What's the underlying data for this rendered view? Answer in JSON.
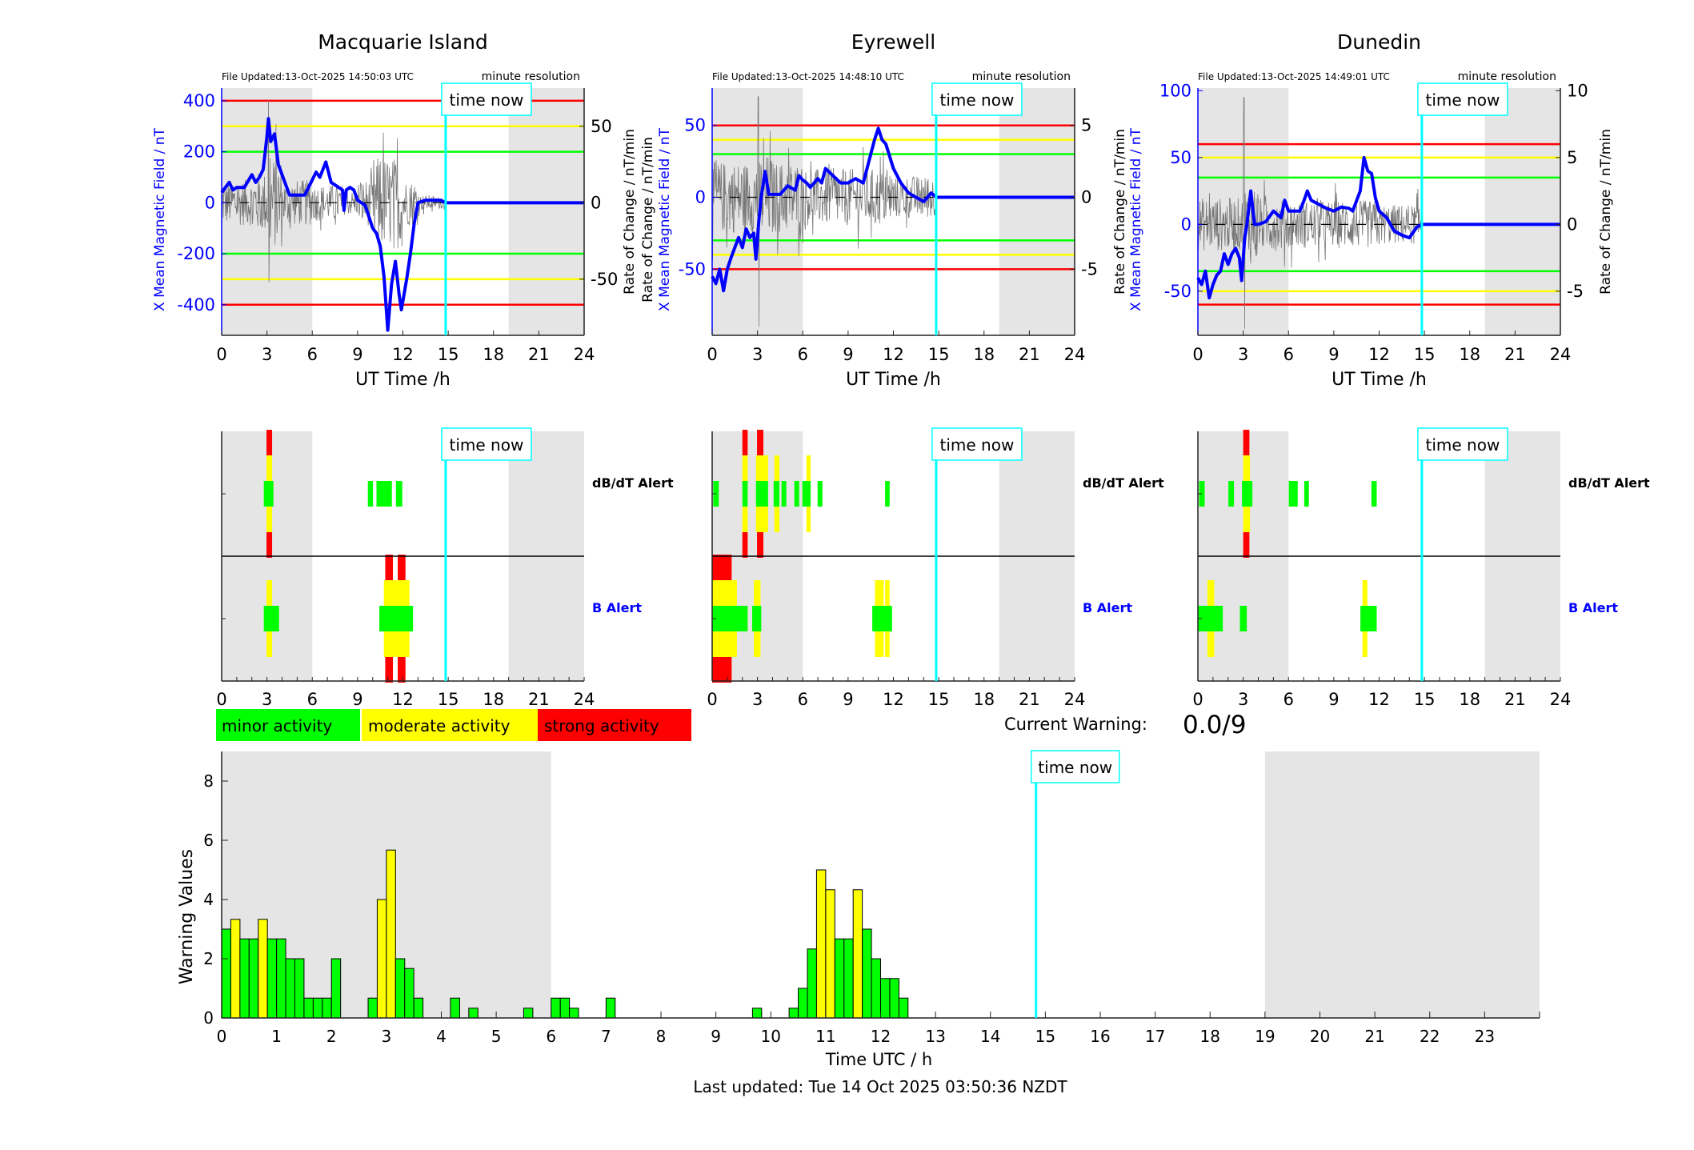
{
  "time_now_label": "time now",
  "time_now_hour": 14.83,
  "night_shading_hours": [
    [
      0,
      6
    ],
    [
      19,
      24
    ]
  ],
  "colors": {
    "field": "#0000ff",
    "rate": "#808080",
    "red": "#ff0000",
    "yellow": "#ffff00",
    "green": "#00ff00",
    "time_now": "#00ffff",
    "night": "#e5e5e5"
  },
  "stations": [
    {
      "title": "Macquarie Island",
      "file_updated": "File Updated:13-Oct-2025 14:50:03 UTC",
      "resolution_label": "minute resolution",
      "left_labels": [
        {
          "text": "X Mean Magnetic Field / nT",
          "color": "#0000ff"
        }
      ],
      "right_label": "Rate of Change / nT/min",
      "xlabel": "UT Time /h",
      "xticks": [
        0,
        3,
        6,
        9,
        12,
        15,
        18,
        21,
        24
      ],
      "field_ylim": [
        -520,
        450
      ],
      "field_ticks": [
        400,
        200,
        0,
        -200,
        -400
      ],
      "rate_ylim": [
        -86.7,
        75
      ],
      "rate_ticks": [
        50,
        0,
        -50
      ],
      "thresholds": {
        "red": 400,
        "yellow": 300,
        "green": 200
      },
      "field_x": [
        [
          0,
          40
        ],
        [
          0.25,
          60
        ],
        [
          0.5,
          80
        ],
        [
          0.75,
          50
        ],
        [
          1,
          60
        ],
        [
          1.5,
          60
        ],
        [
          2,
          110
        ],
        [
          2.25,
          80
        ],
        [
          2.5,
          100
        ],
        [
          2.75,
          130
        ],
        [
          3,
          260
        ],
        [
          3.1,
          330
        ],
        [
          3.25,
          240
        ],
        [
          3.5,
          270
        ],
        [
          3.75,
          150
        ],
        [
          4,
          110
        ],
        [
          4.25,
          70
        ],
        [
          4.5,
          30
        ],
        [
          5,
          30
        ],
        [
          5.5,
          30
        ],
        [
          6,
          90
        ],
        [
          6.25,
          120
        ],
        [
          6.5,
          100
        ],
        [
          6.9,
          160
        ],
        [
          7.25,
          80
        ],
        [
          7.5,
          70
        ],
        [
          8,
          50
        ],
        [
          8.1,
          -30
        ],
        [
          8.25,
          50
        ],
        [
          8.5,
          60
        ],
        [
          8.75,
          50
        ],
        [
          9,
          10
        ],
        [
          9.5,
          -10
        ],
        [
          10,
          -100
        ],
        [
          10.25,
          -120
        ],
        [
          10.5,
          -170
        ],
        [
          10.75,
          -290
        ],
        [
          11,
          -500
        ],
        [
          11.25,
          -320
        ],
        [
          11.5,
          -230
        ],
        [
          11.75,
          -360
        ],
        [
          11.9,
          -420
        ],
        [
          12.25,
          -300
        ],
        [
          12.5,
          -200
        ],
        [
          12.75,
          -80
        ],
        [
          13,
          0
        ],
        [
          13.5,
          10
        ],
        [
          14,
          10
        ],
        [
          14.5,
          10
        ],
        [
          14.83,
          0
        ],
        [
          24,
          0
        ]
      ],
      "rate_envelope_hourly": [
        15,
        15,
        20,
        30,
        15,
        15,
        12,
        12,
        8,
        15,
        30,
        30,
        15,
        5,
        4
      ],
      "rate_spikes": [
        {
          "t": 3.1,
          "min": -52,
          "max": 67
        }
      ],
      "dbdt_alert_label": "dB/dT Alert",
      "b_alert_label": "B Alert",
      "dbdt_alerts": {
        "green": [
          [
            2.79,
            3.43
          ],
          [
            9.68,
            10.02
          ],
          [
            10.25,
            11.27
          ],
          [
            11.54,
            11.96
          ]
        ],
        "yellow": [
          [
            2.97,
            3.34
          ]
        ],
        "red": [
          [
            2.97,
            3.34
          ]
        ]
      },
      "b_alerts": {
        "green": [
          [
            2.79,
            3.8
          ],
          [
            10.44,
            12.67
          ]
        ],
        "yellow": [
          [
            2.97,
            3.34
          ],
          [
            10.74,
            12.44
          ]
        ],
        "red": [
          [
            10.83,
            11.34
          ],
          [
            11.66,
            12.17
          ]
        ]
      }
    },
    {
      "title": "Eyrewell",
      "file_updated": "File Updated:13-Oct-2025 14:48:10 UTC",
      "resolution_label": "minute resolution",
      "left_labels": [
        {
          "text": "Rate of Change / nT/min",
          "color": "#000000"
        },
        {
          "text": "X Mean Magnetic Field / nT",
          "color": "#0000ff"
        }
      ],
      "right_label": "Rate of Change / nT/min",
      "xlabel": "UT Time /h",
      "xticks": [
        0,
        3,
        6,
        9,
        12,
        15,
        18,
        21,
        24
      ],
      "field_ylim": [
        -96,
        76
      ],
      "field_ticks": [
        50,
        0,
        -50
      ],
      "rate_ylim": [
        -9.6,
        7.6
      ],
      "rate_ticks": [
        5,
        0,
        -5
      ],
      "thresholds": {
        "red": 50,
        "yellow": 40,
        "green": 30
      },
      "field_x": [
        [
          0,
          -55
        ],
        [
          0.25,
          -60
        ],
        [
          0.5,
          -50
        ],
        [
          0.75,
          -65
        ],
        [
          1,
          -50
        ],
        [
          1.25,
          -42
        ],
        [
          1.5,
          -35
        ],
        [
          1.75,
          -28
        ],
        [
          2,
          -35
        ],
        [
          2.25,
          -22
        ],
        [
          2.5,
          -28
        ],
        [
          2.75,
          -25
        ],
        [
          2.9,
          -43
        ],
        [
          3.1,
          -15
        ],
        [
          3.25,
          0
        ],
        [
          3.5,
          18
        ],
        [
          3.75,
          2
        ],
        [
          4,
          2
        ],
        [
          4.5,
          2
        ],
        [
          5,
          8
        ],
        [
          5.5,
          5
        ],
        [
          5.75,
          15
        ],
        [
          6,
          12
        ],
        [
          6.25,
          10
        ],
        [
          6.5,
          7
        ],
        [
          7,
          13
        ],
        [
          7.25,
          10
        ],
        [
          7.5,
          20
        ],
        [
          8,
          15
        ],
        [
          8.5,
          10
        ],
        [
          9,
          10
        ],
        [
          9.5,
          13
        ],
        [
          10,
          10
        ],
        [
          10.5,
          30
        ],
        [
          10.75,
          40
        ],
        [
          11,
          48
        ],
        [
          11.25,
          40
        ],
        [
          11.5,
          37
        ],
        [
          12,
          20
        ],
        [
          12.5,
          10
        ],
        [
          13,
          3
        ],
        [
          13.5,
          0
        ],
        [
          14,
          -3
        ],
        [
          14.5,
          3
        ],
        [
          14.83,
          0
        ],
        [
          24,
          0
        ]
      ],
      "rate_envelope_hourly": [
        2.5,
        2.5,
        2.5,
        3,
        2.5,
        2.5,
        2,
        2,
        2,
        2,
        2,
        2,
        1.5,
        1.5,
        1.5
      ],
      "rate_spikes": [
        {
          "t": 3.05,
          "min": -9,
          "max": 7
        }
      ],
      "dbdt_alert_label": "dB/dT Alert",
      "b_alert_label": "B Alert",
      "dbdt_alerts": {
        "green": [
          [
            0.07,
            0.44
          ],
          [
            2.0,
            2.35
          ],
          [
            2.9,
            3.7
          ],
          [
            4.07,
            4.45
          ],
          [
            4.59,
            4.91
          ],
          [
            5.44,
            5.76
          ],
          [
            5.97,
            6.52
          ],
          [
            6.98,
            7.3
          ],
          [
            11.45,
            11.75
          ]
        ],
        "yellow": [
          [
            2.0,
            2.35
          ],
          [
            2.9,
            3.7
          ],
          [
            4.12,
            4.45
          ],
          [
            6.24,
            6.52
          ]
        ],
        "red": [
          [
            2.0,
            2.35
          ],
          [
            2.97,
            3.39
          ]
        ]
      },
      "b_alerts": {
        "green": [
          [
            0,
            2.35
          ],
          [
            2.65,
            3.25
          ],
          [
            10.6,
            11.91
          ]
        ],
        "yellow": [
          [
            0,
            1.64
          ],
          [
            2.76,
            3.2
          ],
          [
            10.78,
            11.36
          ],
          [
            11.45,
            11.75
          ]
        ],
        "red": [
          [
            0,
            1.29
          ]
        ]
      }
    },
    {
      "title": "Dunedin",
      "file_updated": "File Updated:13-Oct-2025 14:49:01 UTC",
      "resolution_label": "minute resolution",
      "left_labels": [
        {
          "text": "X Mean Magnetic Field / nT",
          "color": "#0000ff"
        }
      ],
      "right_label": "Rate of Change / nT/min",
      "xlabel": "UT Time /h",
      "xticks": [
        0,
        3,
        6,
        9,
        12,
        15,
        18,
        21,
        24
      ],
      "field_ylim": [
        -83,
        102
      ],
      "field_ticks": [
        100,
        50,
        0,
        -50
      ],
      "rate_ylim": [
        -8.3,
        10.2
      ],
      "rate_ticks": [
        10,
        5,
        0,
        -5
      ],
      "thresholds": {
        "red": 60,
        "yellow": 50,
        "green": 35
      },
      "field_x": [
        [
          0,
          -40
        ],
        [
          0.25,
          -45
        ],
        [
          0.5,
          -35
        ],
        [
          0.75,
          -55
        ],
        [
          1,
          -45
        ],
        [
          1.25,
          -38
        ],
        [
          1.5,
          -35
        ],
        [
          1.75,
          -22
        ],
        [
          2,
          -30
        ],
        [
          2.25,
          -22
        ],
        [
          2.5,
          -18
        ],
        [
          2.75,
          -25
        ],
        [
          2.9,
          -42
        ],
        [
          3.1,
          -10
        ],
        [
          3.25,
          0
        ],
        [
          3.5,
          25
        ],
        [
          3.75,
          0
        ],
        [
          4,
          0
        ],
        [
          4.5,
          2
        ],
        [
          5,
          10
        ],
        [
          5.5,
          5
        ],
        [
          5.75,
          18
        ],
        [
          6,
          10
        ],
        [
          6.25,
          10
        ],
        [
          6.75,
          10
        ],
        [
          7,
          17
        ],
        [
          7.25,
          25
        ],
        [
          7.5,
          18
        ],
        [
          8,
          15
        ],
        [
          8.5,
          12
        ],
        [
          9,
          10
        ],
        [
          9.5,
          13
        ],
        [
          10,
          12
        ],
        [
          10.25,
          10
        ],
        [
          10.75,
          25
        ],
        [
          11,
          50
        ],
        [
          11.25,
          40
        ],
        [
          11.5,
          38
        ],
        [
          11.75,
          20
        ],
        [
          12,
          10
        ],
        [
          12.5,
          5
        ],
        [
          13,
          -5
        ],
        [
          13.5,
          -8
        ],
        [
          14,
          -10
        ],
        [
          14.5,
          -2
        ],
        [
          14.83,
          0
        ],
        [
          24,
          0
        ]
      ],
      "rate_envelope_hourly": [
        2,
        2,
        2,
        3,
        2,
        2,
        1.8,
        1.8,
        1.8,
        1.8,
        1.8,
        1.8,
        1.5,
        1.5,
        1.5
      ],
      "rate_spikes": [
        {
          "t": 3.05,
          "min": -7.8,
          "max": 9.5
        }
      ],
      "dbdt_alert_label": "dB/dT Alert",
      "b_alert_label": "B Alert",
      "dbdt_alerts": {
        "green": [
          [
            0.08,
            0.45
          ],
          [
            2.02,
            2.39
          ],
          [
            2.92,
            3.61
          ],
          [
            6.02,
            6.61
          ],
          [
            7.04,
            7.35
          ],
          [
            11.49,
            11.84
          ]
        ],
        "yellow": [
          [
            3.0,
            3.45
          ]
        ],
        "red": [
          [
            3.0,
            3.41
          ]
        ]
      },
      "b_alerts": {
        "green": [
          [
            0,
            1.65
          ],
          [
            2.78,
            3.24
          ],
          [
            10.76,
            11.84
          ]
        ],
        "yellow": [
          [
            0.63,
            1.08
          ],
          [
            10.9,
            11.22
          ]
        ],
        "red": []
      }
    }
  ],
  "legend": {
    "minor": "minor activity",
    "moderate": "moderate activity",
    "strong": "strong activity"
  },
  "current_warning": {
    "label": "Current Warning:",
    "value": "0.0/9"
  },
  "chart_data": {
    "type": "bar",
    "xlabel": "Time UTC / h",
    "ylabel": "Warning Values",
    "xlim": [
      0,
      24
    ],
    "ylim": [
      0,
      9
    ],
    "xticks": [
      0,
      1,
      2,
      3,
      4,
      5,
      6,
      7,
      8,
      9,
      10,
      11,
      12,
      13,
      14,
      15,
      16,
      17,
      18,
      19,
      20,
      21,
      22,
      23
    ],
    "yticks": [
      0,
      2,
      4,
      6,
      8
    ],
    "bin_width_hours": 0.1667,
    "bars": [
      {
        "start": 0,
        "value": 3.0,
        "level": "minor"
      },
      {
        "start": 0.167,
        "value": 3.33,
        "level": "moderate"
      },
      {
        "start": 0.333,
        "value": 2.67,
        "level": "minor"
      },
      {
        "start": 0.5,
        "value": 2.67,
        "level": "minor"
      },
      {
        "start": 0.667,
        "value": 3.33,
        "level": "moderate"
      },
      {
        "start": 0.833,
        "value": 2.67,
        "level": "minor"
      },
      {
        "start": 1.0,
        "value": 2.67,
        "level": "minor"
      },
      {
        "start": 1.167,
        "value": 2.0,
        "level": "minor"
      },
      {
        "start": 1.333,
        "value": 2.0,
        "level": "minor"
      },
      {
        "start": 1.5,
        "value": 0.67,
        "level": "minor"
      },
      {
        "start": 1.667,
        "value": 0.67,
        "level": "minor"
      },
      {
        "start": 1.833,
        "value": 0.67,
        "level": "minor"
      },
      {
        "start": 2.0,
        "value": 2.0,
        "level": "minor"
      },
      {
        "start": 2.667,
        "value": 0.67,
        "level": "minor"
      },
      {
        "start": 2.833,
        "value": 4.0,
        "level": "moderate"
      },
      {
        "start": 3.0,
        "value": 5.67,
        "level": "moderate"
      },
      {
        "start": 3.167,
        "value": 2.0,
        "level": "minor"
      },
      {
        "start": 3.333,
        "value": 1.67,
        "level": "minor"
      },
      {
        "start": 3.5,
        "value": 0.67,
        "level": "minor"
      },
      {
        "start": 4.167,
        "value": 0.67,
        "level": "minor"
      },
      {
        "start": 4.5,
        "value": 0.33,
        "level": "minor"
      },
      {
        "start": 5.5,
        "value": 0.33,
        "level": "minor"
      },
      {
        "start": 6.0,
        "value": 0.67,
        "level": "minor"
      },
      {
        "start": 6.167,
        "value": 0.67,
        "level": "minor"
      },
      {
        "start": 6.333,
        "value": 0.33,
        "level": "minor"
      },
      {
        "start": 7.0,
        "value": 0.67,
        "level": "minor"
      },
      {
        "start": 9.667,
        "value": 0.33,
        "level": "minor"
      },
      {
        "start": 10.333,
        "value": 0.33,
        "level": "minor"
      },
      {
        "start": 10.5,
        "value": 1.0,
        "level": "minor"
      },
      {
        "start": 10.667,
        "value": 2.33,
        "level": "minor"
      },
      {
        "start": 10.833,
        "value": 5.0,
        "level": "moderate"
      },
      {
        "start": 11.0,
        "value": 4.33,
        "level": "moderate"
      },
      {
        "start": 11.167,
        "value": 2.67,
        "level": "minor"
      },
      {
        "start": 11.333,
        "value": 2.67,
        "level": "minor"
      },
      {
        "start": 11.5,
        "value": 4.33,
        "level": "moderate"
      },
      {
        "start": 11.667,
        "value": 3.0,
        "level": "minor"
      },
      {
        "start": 11.833,
        "value": 2.0,
        "level": "minor"
      },
      {
        "start": 12.0,
        "value": 1.33,
        "level": "minor"
      },
      {
        "start": 12.167,
        "value": 1.33,
        "level": "minor"
      },
      {
        "start": 12.333,
        "value": 0.67,
        "level": "minor"
      }
    ],
    "level_colors": {
      "minor": "#00ff00",
      "moderate": "#ffff00",
      "strong": "#ff0000"
    }
  },
  "footer": "Last updated: Tue 14 Oct 2025 03:50:36 NZDT"
}
